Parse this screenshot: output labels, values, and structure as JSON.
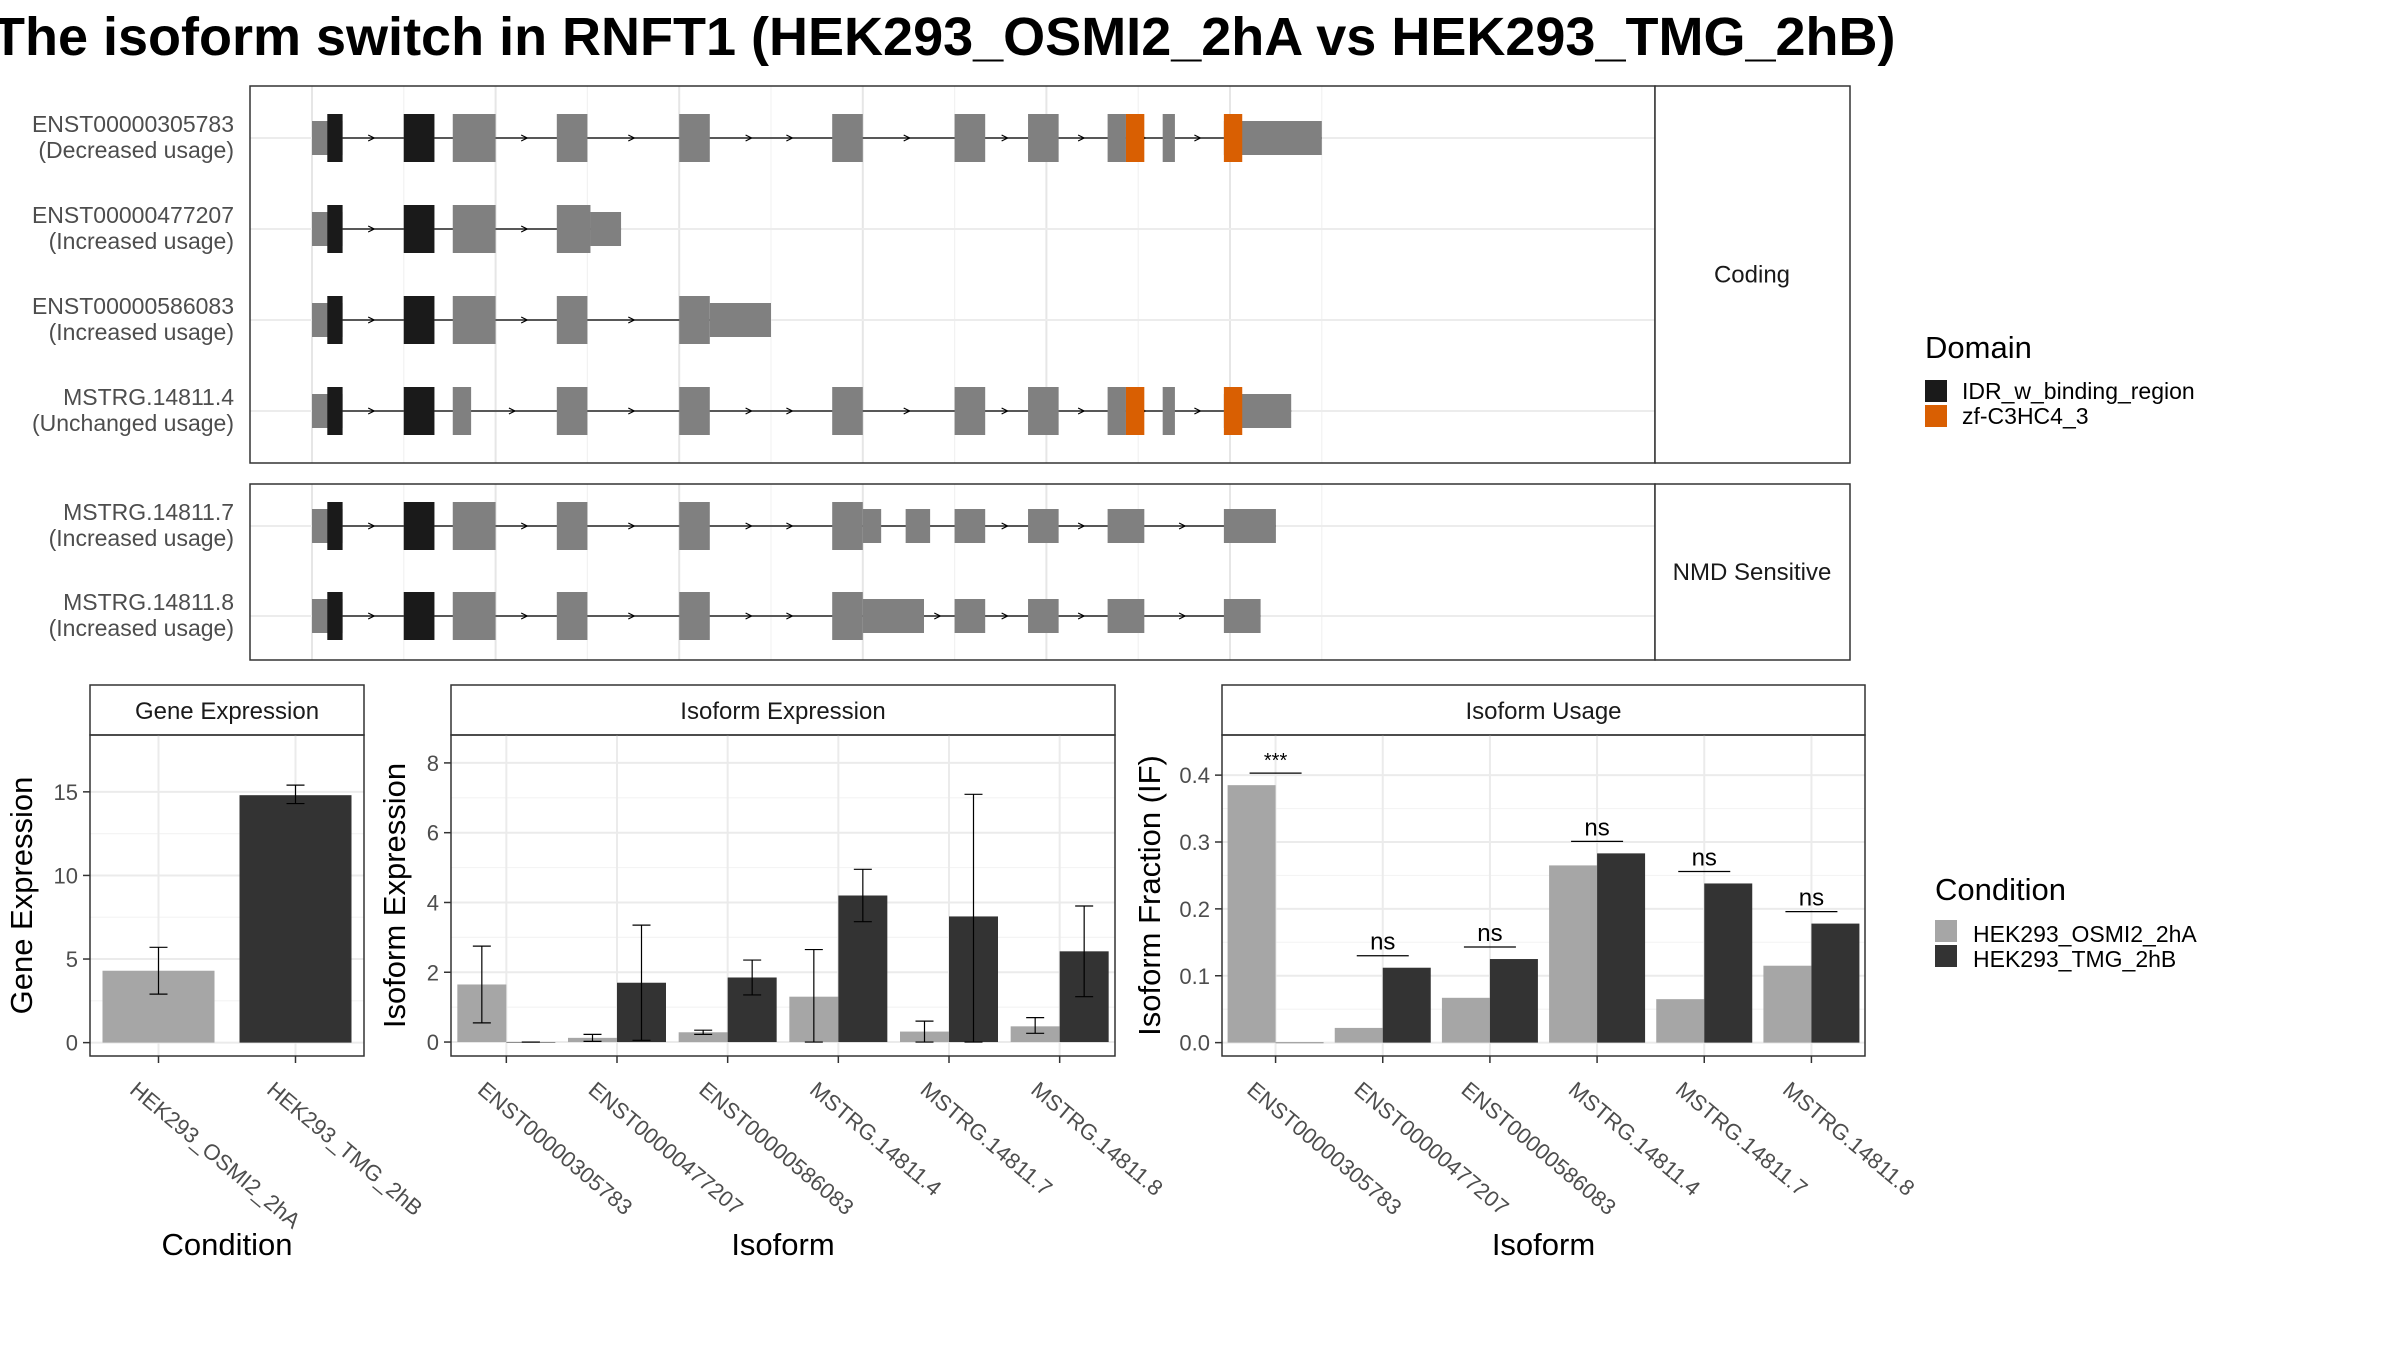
{
  "title": "The isoform switch in RNFT1 (HEK293_OSMI2_2hA vs HEK293_TMG_2hB)",
  "colors": {
    "exon": "#808080",
    "idr": "#1a1a1a",
    "zf": "#d95f02",
    "cond_a": "#a6a6a6",
    "cond_b": "#333333"
  },
  "chart_data": [
    {
      "type": "other",
      "description_kind": "transcript structure",
      "facets": [
        {
          "label": "Coding",
          "rows": [
            {
              "id": "ENST00000305783",
              "usage": "(Decreased usage)",
              "exons": [
                [
                  1,
                  2
                ],
                [
                  4,
                  5
                ],
                [
                  5.6,
                  7
                ],
                [
                  9,
                  10
                ],
                [
                  13,
                  14
                ],
                [
                  18,
                  19
                ],
                [
                  22,
                  23
                ],
                [
                  24.4,
                  25.4
                ],
                [
                  27,
                  27.6
                ],
                [
                  28.8,
                  29.2
                ],
                [
                  30.8,
                  34
                ]
              ],
              "idr": [
                [
                  1.5,
                  2
                ],
                [
                  4,
                  5
                ]
              ],
              "zf": [
                [
                  27.6,
                  28.2
                ],
                [
                  30.8,
                  31.4
                ]
              ]
            },
            {
              "id": "ENST00000477207",
              "usage": "(Increased usage)",
              "exons": [
                [
                  1,
                  2
                ],
                [
                  4,
                  5
                ],
                [
                  5.6,
                  7
                ],
                [
                  9,
                  10.1
                ],
                [
                  10.1,
                  11.1
                ]
              ],
              "idr": [
                [
                  1.5,
                  2
                ],
                [
                  4,
                  5
                ]
              ],
              "zf": []
            },
            {
              "id": "ENST00000586083",
              "usage": "(Increased usage)",
              "exons": [
                [
                  1,
                  2
                ],
                [
                  4,
                  5
                ],
                [
                  5.6,
                  7
                ],
                [
                  9,
                  10
                ],
                [
                  13,
                  14
                ],
                [
                  14,
                  16
                ]
              ],
              "idr": [
                [
                  1.5,
                  2
                ],
                [
                  4,
                  5
                ]
              ],
              "zf": []
            },
            {
              "id": "MSTRG.14811.4",
              "usage": "(Unchanged usage)",
              "exons": [
                [
                  1,
                  2
                ],
                [
                  4,
                  5
                ],
                [
                  5.6,
                  6.2
                ],
                [
                  9,
                  10
                ],
                [
                  13,
                  14
                ],
                [
                  18,
                  19
                ],
                [
                  22,
                  23
                ],
                [
                  24.4,
                  25.4
                ],
                [
                  27,
                  27.6
                ],
                [
                  28.8,
                  29.2
                ],
                [
                  30.8,
                  33
                ]
              ],
              "idr": [
                [
                  1.5,
                  2
                ],
                [
                  4,
                  5
                ]
              ],
              "zf": [
                [
                  27.6,
                  28.2
                ],
                [
                  30.8,
                  31.4
                ]
              ]
            }
          ]
        },
        {
          "label": "NMD Sensitive",
          "rows": [
            {
              "id": "MSTRG.14811.7",
              "usage": "(Increased usage)",
              "exons": [
                [
                  1,
                  2
                ],
                [
                  4,
                  5
                ],
                [
                  5.6,
                  7
                ],
                [
                  9,
                  10
                ],
                [
                  13,
                  14
                ],
                [
                  18,
                  19
                ],
                [
                  19,
                  19.6
                ],
                [
                  20.4,
                  21.2
                ],
                [
                  22,
                  23
                ],
                [
                  24.4,
                  25.4
                ],
                [
                  27,
                  28.2
                ],
                [
                  30.8,
                  32.5
                ]
              ],
              "idr": [
                [
                  1.5,
                  2
                ],
                [
                  4,
                  5
                ]
              ],
              "zf": []
            },
            {
              "id": "MSTRG.14811.8",
              "usage": "(Increased usage)",
              "exons": [
                [
                  1,
                  2
                ],
                [
                  4,
                  5
                ],
                [
                  5.6,
                  7
                ],
                [
                  9,
                  10
                ],
                [
                  13,
                  14
                ],
                [
                  18,
                  19
                ],
                [
                  19,
                  21
                ],
                [
                  22,
                  23
                ],
                [
                  24.4,
                  25.4
                ],
                [
                  27,
                  28.2
                ],
                [
                  30.8,
                  32
                ]
              ],
              "idr": [
                [
                  1.5,
                  2
                ],
                [
                  4,
                  5
                ]
              ],
              "zf": []
            }
          ]
        }
      ],
      "legend": {
        "title": "Domain",
        "entries": [
          "IDR_w_binding_region",
          "zf-C3HC4_3"
        ],
        "placement": "right"
      }
    },
    {
      "type": "bar",
      "title": "Gene Expression",
      "xlabel": "Condition",
      "ylabel": "Gene Expression",
      "ylim": [
        -0.8,
        18.4
      ],
      "yticks": [
        0,
        5,
        10,
        15
      ],
      "categories": [
        "HEK293_OSMI2_2hA",
        "HEK293_TMG_2hB"
      ],
      "values": [
        4.3,
        14.8
      ],
      "errors": [
        [
          2.9,
          5.7
        ],
        [
          14.3,
          15.4
        ]
      ]
    },
    {
      "type": "bar",
      "title": "Isoform Expression",
      "xlabel": "Isoform",
      "ylabel": "Isoform Expression",
      "ylim": [
        -0.4,
        8.8
      ],
      "yticks": [
        0,
        2,
        4,
        6,
        8
      ],
      "categories": [
        "ENST00000305783",
        "ENST00000477207",
        "ENST00000586083",
        "MSTRG.14811.4",
        "MSTRG.14811.7",
        "MSTRG.14811.8"
      ],
      "series": [
        {
          "name": "HEK293_OSMI2_2hA",
          "values": [
            1.65,
            0.12,
            0.28,
            1.3,
            0.3,
            0.45
          ],
          "errors": [
            [
              0.55,
              2.75
            ],
            [
              0.02,
              0.22
            ],
            [
              0.22,
              0.34
            ],
            [
              0,
              2.65
            ],
            [
              0,
              0.6
            ],
            [
              0.25,
              0.7
            ]
          ]
        },
        {
          "name": "HEK293_TMG_2hB",
          "values": [
            0,
            1.7,
            1.85,
            4.2,
            3.6,
            2.6
          ],
          "errors": [
            [
              0,
              0
            ],
            [
              0.05,
              3.35
            ],
            [
              1.35,
              2.35
            ],
            [
              3.45,
              4.95
            ],
            [
              0,
              7.1
            ],
            [
              1.3,
              3.9
            ]
          ]
        }
      ]
    },
    {
      "type": "bar",
      "title": "Isoform Usage",
      "xlabel": "Isoform",
      "ylabel": "Isoform Fraction (IF)",
      "ylim": [
        -0.02,
        0.46
      ],
      "yticks": [
        "0.0",
        "0.1",
        "0.2",
        "0.3",
        "0.4"
      ],
      "categories": [
        "ENST00000305783",
        "ENST00000477207",
        "ENST00000586083",
        "MSTRG.14811.4",
        "MSTRG.14811.7",
        "MSTRG.14811.8"
      ],
      "series": [
        {
          "name": "HEK293_OSMI2_2hA",
          "values": [
            0.385,
            0.022,
            0.067,
            0.265,
            0.065,
            0.115
          ]
        },
        {
          "name": "HEK293_TMG_2hB",
          "values": [
            0.0,
            0.112,
            0.125,
            0.283,
            0.238,
            0.178
          ]
        }
      ],
      "significance": [
        "***",
        "ns",
        "ns",
        "ns",
        "ns",
        "ns"
      ],
      "legend": {
        "title": "Condition",
        "entries": [
          "HEK293_OSMI2_2hA",
          "HEK293_TMG_2hB"
        ],
        "placement": "right"
      }
    }
  ]
}
